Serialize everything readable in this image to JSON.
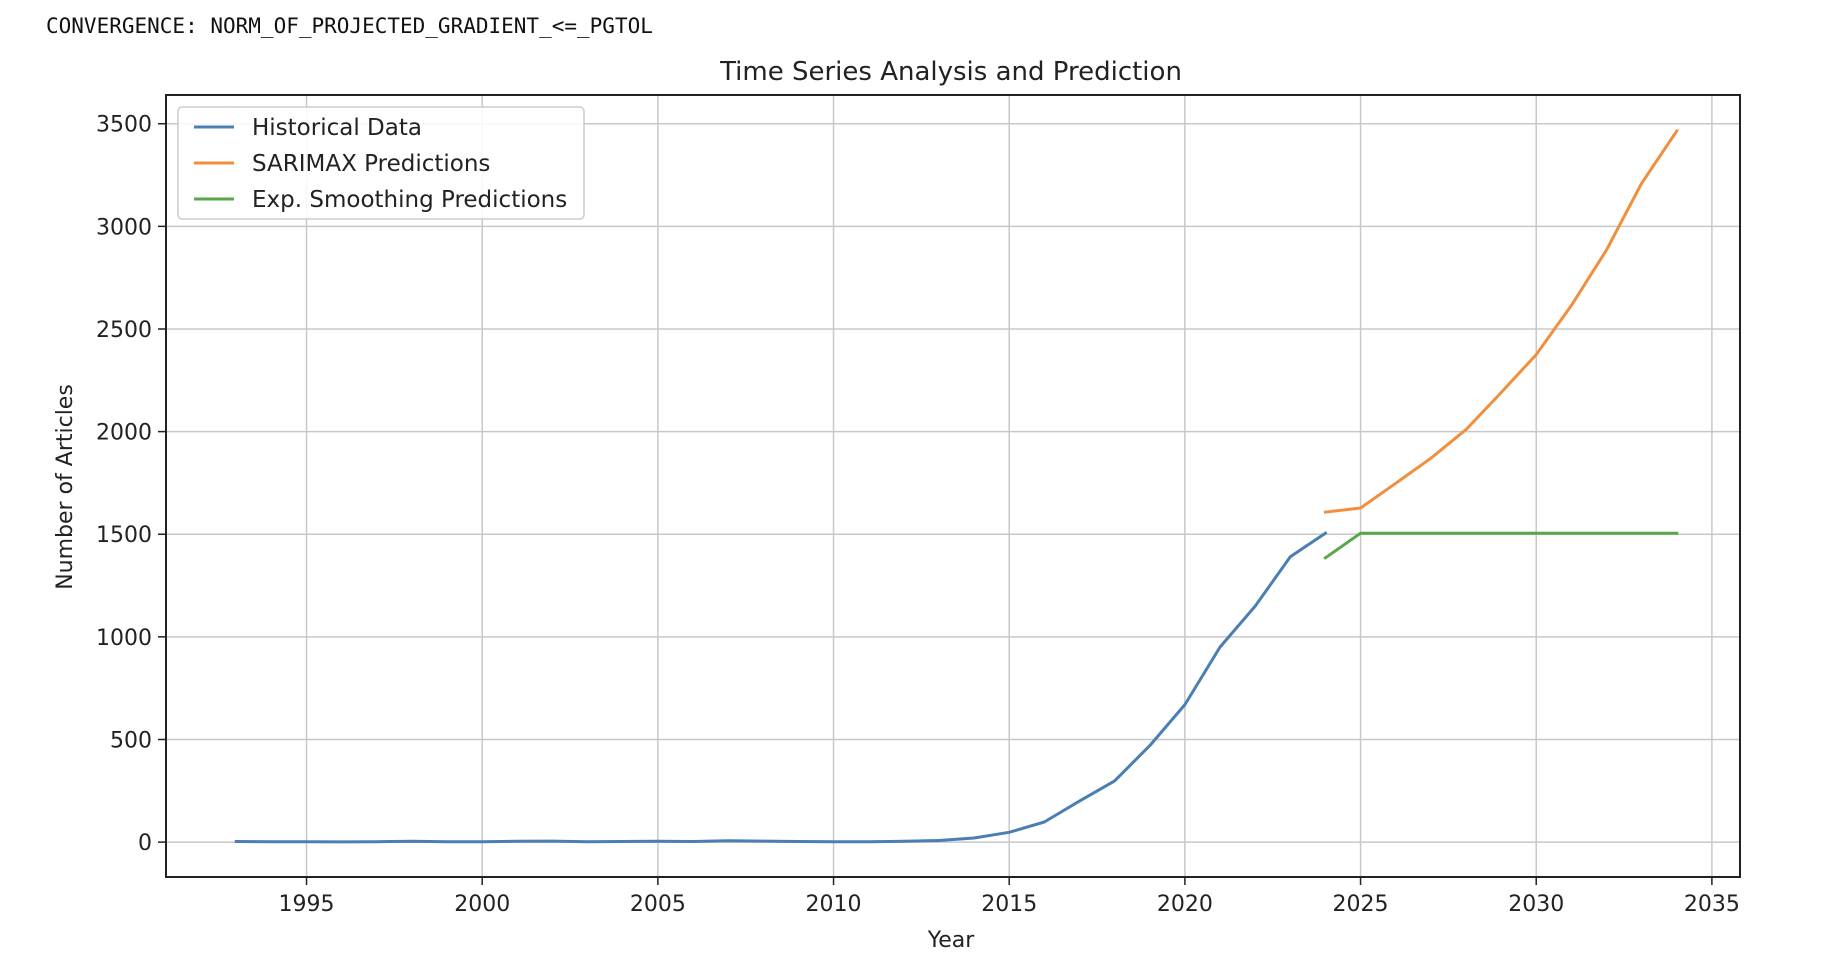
{
  "console": {
    "message": "CONVERGENCE: NORM_OF_PROJECTED_GRADIENT_<=_PGTOL"
  },
  "chart_data": {
    "type": "line",
    "title": "Time Series Analysis and Prediction",
    "xlabel": "Year",
    "ylabel": "Number of Articles",
    "xlim": [
      1991,
      2035.8
    ],
    "ylim": [
      -170,
      3640
    ],
    "xticks": [
      1995,
      2000,
      2005,
      2010,
      2015,
      2020,
      2025,
      2030,
      2035
    ],
    "yticks": [
      0,
      500,
      1000,
      1500,
      2000,
      2500,
      3000,
      3500
    ],
    "grid": true,
    "legend_position": "top-left",
    "series": [
      {
        "name": "Historical Data",
        "color": "#4a7eb5",
        "x": [
          1993,
          1994,
          1995,
          1996,
          1997,
          1998,
          1999,
          2000,
          2001,
          2002,
          2003,
          2004,
          2005,
          2006,
          2007,
          2008,
          2009,
          2010,
          2011,
          2012,
          2013,
          2014,
          2015,
          2016,
          2017,
          2018,
          2019,
          2020,
          2021,
          2022,
          2023,
          2024
        ],
        "y": [
          3,
          2,
          2,
          1,
          2,
          4,
          2,
          2,
          4,
          5,
          2,
          3,
          4,
          3,
          7,
          5,
          3,
          2,
          2,
          4,
          8,
          20,
          48,
          98,
          200,
          298,
          470,
          670,
          950,
          1150,
          1390,
          1505
        ]
      },
      {
        "name": "SARIMAX Predictions",
        "color": "#f08f3e",
        "x": [
          2024,
          2025,
          2026,
          2027,
          2028,
          2029,
          2030,
          2031,
          2032,
          2033,
          2034
        ],
        "y": [
          1608,
          1628,
          1748,
          1870,
          2010,
          2190,
          2375,
          2615,
          2885,
          3210,
          3465
        ]
      },
      {
        "name": "Exp. Smoothing Predictions",
        "color": "#5aa64a",
        "x": [
          2024,
          2025,
          2026,
          2027,
          2028,
          2029,
          2030,
          2031,
          2032,
          2033,
          2034
        ],
        "y": [
          1385,
          1505,
          1505,
          1505,
          1505,
          1505,
          1505,
          1505,
          1505,
          1505,
          1505
        ]
      }
    ]
  }
}
